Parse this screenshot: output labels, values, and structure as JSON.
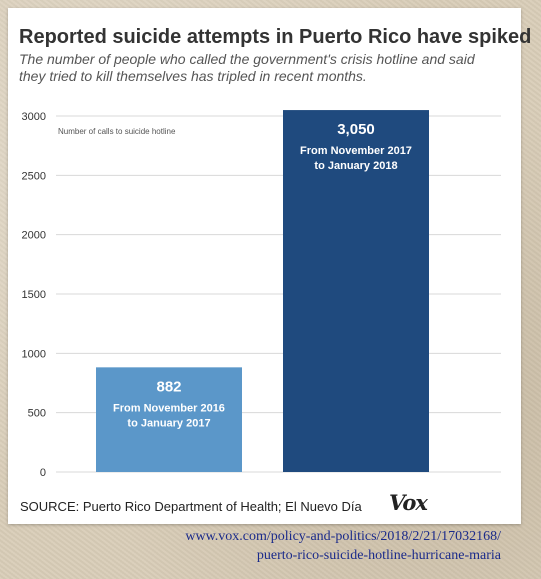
{
  "chart_data": {
    "type": "bar",
    "title": "Reported suicide attempts in Puerto Rico have spiked",
    "subtitle": "The number of people who called the government's crisis hotline and said they tried to kill themselves has tripled in recent months.",
    "ylabel": "Number of calls to suicide hotline",
    "ylim": [
      0,
      3000
    ],
    "yticks": [
      0,
      500,
      1000,
      1500,
      2000,
      2500,
      3000
    ],
    "grid": true,
    "categories": [
      "From November 2016 to January 2017",
      "From November 2017 to January 2018"
    ],
    "values": [
      882,
      3050
    ],
    "bars": [
      {
        "value_label": "882",
        "period_line1": "From November 2016",
        "period_line2": "to January 2017",
        "color": "#5b97c9"
      },
      {
        "value_label": "3,050",
        "period_line1": "From November 2017",
        "period_line2": "to January 2018",
        "color": "#1f4a7e"
      }
    ]
  },
  "source": "SOURCE: Puerto Rico Department of Health; El Nuevo Día",
  "logo": "Vox",
  "url": {
    "line1": "www.vox.com/policy-and-politics/2018/2/21/17032168/",
    "line2": "puerto-rico-suicide-hotline-hurricane-maria"
  },
  "colors": {
    "gridline": "#d8d8d8",
    "axis_text": "#333333",
    "url_text": "#1a2a8a"
  }
}
